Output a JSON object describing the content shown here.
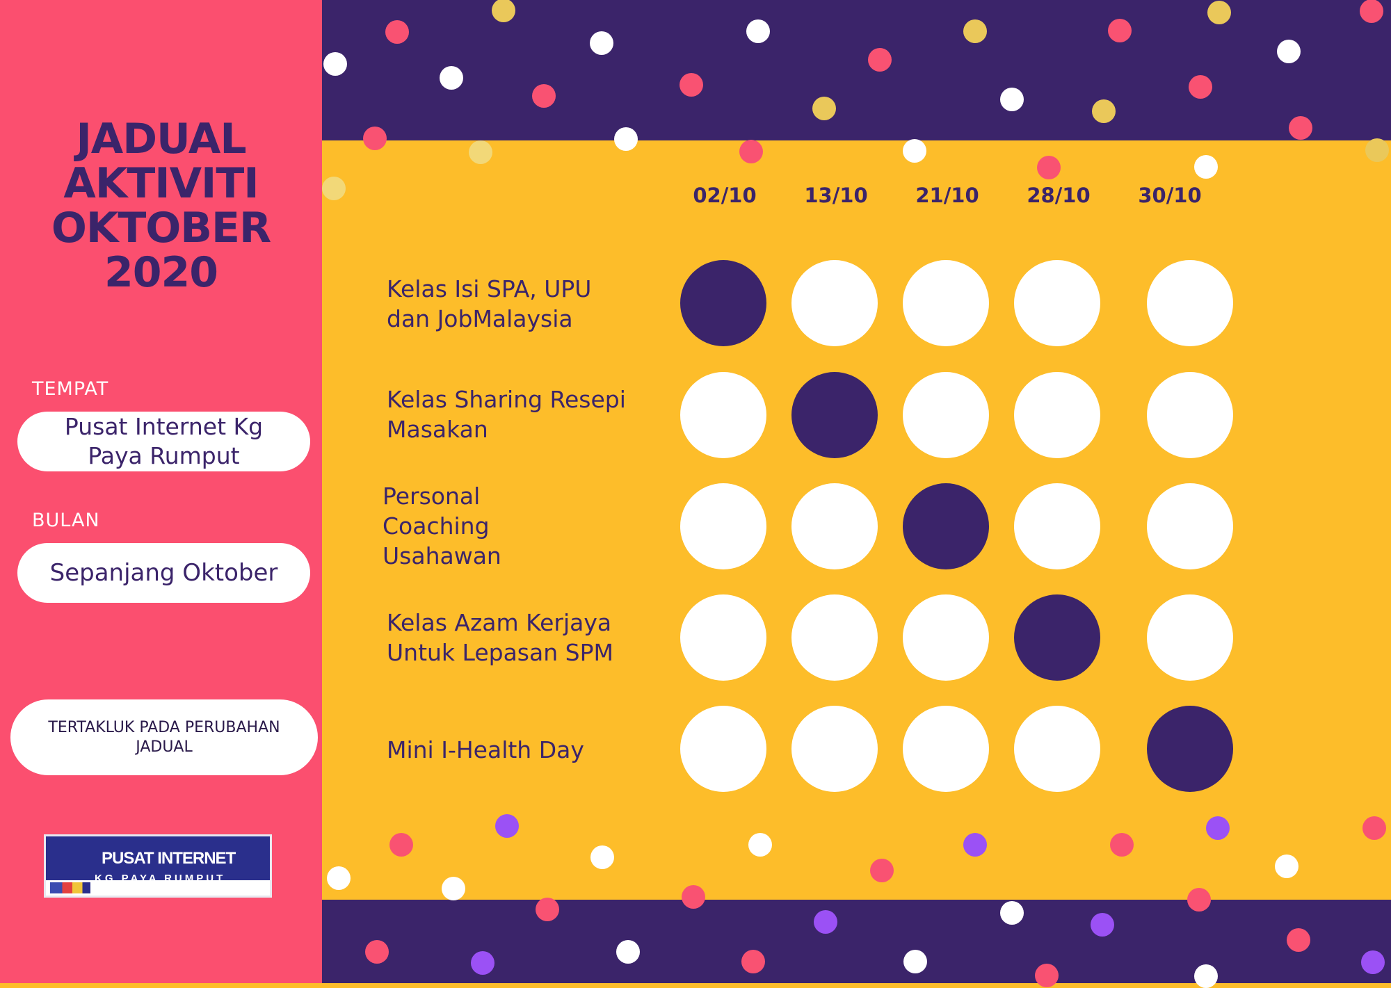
{
  "header": {
    "title_lines": [
      "JADUAL",
      "AKTIVITI",
      "OKTOBER",
      "2020"
    ]
  },
  "venue": {
    "label": "TEMPAT",
    "value_lines": [
      "Pusat Internet Kg",
      "Paya Rumput"
    ]
  },
  "month": {
    "label": "BULAN",
    "value": "Sepanjang Oktober"
  },
  "note": {
    "lines": [
      "TERTAKLUK PADA PERUBAHAN",
      "JADUAL"
    ]
  },
  "logo": {
    "main": "PUSAT INTERNET",
    "sub": "KG PAYA RUMPUT"
  },
  "schedule": {
    "dates": [
      "02/10",
      "13/10",
      "21/10",
      "28/10",
      "30/10"
    ],
    "activities": [
      {
        "lines": [
          "Kelas Isi SPA, UPU",
          "dan JobMalaysia"
        ],
        "date": "02/10"
      },
      {
        "lines": [
          "Kelas Sharing Resepi",
          "Masakan"
        ],
        "date": "13/10"
      },
      {
        "lines": [
          "Personal",
          "Coaching",
          "Usahawan"
        ],
        "date": "21/10"
      },
      {
        "lines": [
          "Kelas Azam Kerjaya",
          "Untuk Lepasan SPM"
        ],
        "date": "28/10"
      },
      {
        "lines": [
          "Mini I-Health Day"
        ],
        "date": "30/10"
      }
    ]
  },
  "colors": {
    "sidebar": "#fb4f6f",
    "panel": "#fdbd2a",
    "band": "#3b246a",
    "marked": "#3b246a",
    "unmarked": "#ffffff"
  }
}
